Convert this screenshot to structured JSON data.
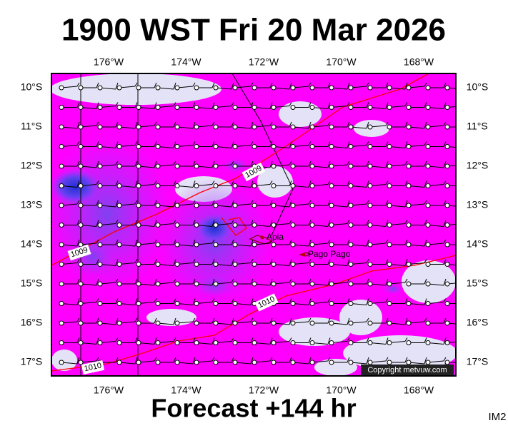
{
  "title": "1900 WST Fri 20 Mar 2026",
  "footer": "Forecast +144 hr",
  "corner_label": "IM2",
  "longitude_labels": [
    "176°W",
    "174°W",
    "172°W",
    "170°W",
    "168°W"
  ],
  "latitude_labels": [
    "10°S",
    "11°S",
    "12°S",
    "13°S",
    "14°S",
    "15°S",
    "16°S",
    "17°S"
  ],
  "places": [
    "Apia",
    "Pago Pago"
  ],
  "isobar_labels": [
    "1009",
    "1009",
    "1010",
    "1010"
  ],
  "copyright": "Copyright metvuw.com"
}
